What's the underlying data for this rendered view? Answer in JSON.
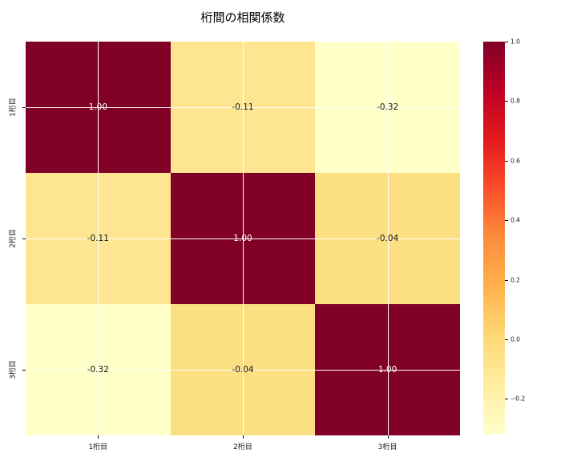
{
  "title": "桁間の相関係数",
  "chart_data": {
    "type": "heatmap",
    "title": "桁間の相関係数",
    "x_categories": [
      "1桁目",
      "2桁目",
      "3桁目"
    ],
    "y_categories": [
      "1桁目",
      "2桁目",
      "3桁目"
    ],
    "matrix": [
      [
        1.0,
        -0.11,
        -0.32
      ],
      [
        -0.11,
        1.0,
        -0.04
      ],
      [
        -0.32,
        -0.04,
        1.0
      ]
    ],
    "cells": [
      {
        "label": "1.00",
        "bg": "#800026",
        "fg": "#ffffff"
      },
      {
        "label": "-0.11",
        "bg": "#fde592",
        "fg": "#151515"
      },
      {
        "label": "-0.32",
        "bg": "#ffffc8",
        "fg": "#151515"
      },
      {
        "label": "-0.11",
        "bg": "#fde592",
        "fg": "#151515"
      },
      {
        "label": "1.00",
        "bg": "#800026",
        "fg": "#ffffff"
      },
      {
        "label": "-0.04",
        "bg": "#fcdf81",
        "fg": "#151515"
      },
      {
        "label": "-0.32",
        "bg": "#ffffc8",
        "fg": "#151515"
      },
      {
        "label": "-0.04",
        "bg": "#fcdf81",
        "fg": "#151515"
      },
      {
        "label": "1.00",
        "bg": "#800026",
        "fg": "#ffffff"
      }
    ],
    "grid": true,
    "grid_color": "#ffffff",
    "colorbar": {
      "vmin": -0.32,
      "vmax": 1.0,
      "tick_labels": [
        "1.0",
        "0.8",
        "0.6",
        "0.4",
        "0.2",
        "0.0",
        "−0.2"
      ],
      "tick_values": [
        1.0,
        0.8,
        0.6,
        0.4,
        0.2,
        0.0,
        -0.2
      ],
      "gradient_stops": [
        "#800026",
        "#bd0026",
        "#e31a1c",
        "#fc4e2a",
        "#fd8d3c",
        "#feb24c",
        "#fed976",
        "#ffeda0",
        "#ffffcc"
      ]
    }
  }
}
